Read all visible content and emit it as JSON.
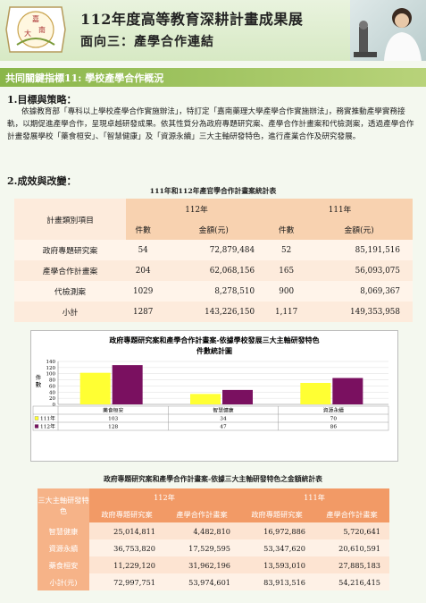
{
  "header": {
    "logo_chars": [
      "嘉",
      "南",
      "大"
    ],
    "title": "112年度高等教育深耕計畫成果展",
    "subtitle": "面向三：產學合作連結"
  },
  "section_bar": "共同關鍵指標11: 學校產學合作概況",
  "sec1": {
    "title": "1.目標與策略：",
    "text": "依據教育部「專科以上學校產學合作實施辦法」，特訂定「嘉南藥理大學產學合作實施辦法」，務實推動產學實務接軌，以期促進產學合作，呈現卓越研發成果。依其性質分為政府專題研究案、產學合作計畫案和代檢測案，透過產學合作計畫發展學校「藥食桓安」、「智慧健康」及「資源永續」三大主軸研發特色，進行產業合作及研究發展。"
  },
  "sec2": {
    "title": "2.成效與改變："
  },
  "table1": {
    "caption": "111年和112年產官學合作計畫案統計表",
    "corner": "計畫類別項目",
    "years": [
      "112年",
      "111年"
    ],
    "subheads": [
      "件數",
      "金額(元)",
      "件數",
      "金額(元)"
    ],
    "rows": [
      {
        "label": "政府專題研究案",
        "v": [
          "54",
          "72,879,484",
          "52",
          "85,191,516"
        ]
      },
      {
        "label": "產學合作計畫案",
        "v": [
          "204",
          "62,068,156",
          "165",
          "56,093,075"
        ]
      },
      {
        "label": "代檢測案",
        "v": [
          "1029",
          "8,278,510",
          "900",
          "8,069,367"
        ]
      },
      {
        "label": "小計",
        "v": [
          "1287",
          "143,226,150",
          "1,117",
          "149,353,958"
        ]
      }
    ]
  },
  "chart_data": {
    "type": "bar",
    "title": "政府專題研究案和產學合作計畫案-依據學校發展三大主軸研發特色",
    "subtitle": "件數統計圖",
    "ylabel": "件數",
    "categories": [
      "藥食桓安",
      "智慧健康",
      "資源永續"
    ],
    "series": [
      {
        "name": "111年",
        "values": [
          103,
          34,
          70
        ],
        "color": "#ffff33"
      },
      {
        "name": "112年",
        "values": [
          128,
          47,
          86
        ],
        "color": "#7a1060"
      }
    ],
    "ylim": [
      0,
      140
    ],
    "yticks": [
      "0",
      "20",
      "40",
      "60",
      "80",
      "100",
      "120",
      "140"
    ]
  },
  "table2": {
    "caption": "政府專題研究案和產學合作計畫案-依據三大主軸研發特色之金額統計表",
    "corner": "三大主軸研發特色",
    "years": [
      "112年",
      "111年"
    ],
    "subheads": [
      "政府專題研究案",
      "產學合作計畫案",
      "政府專題研究案",
      "產學合作計畫案"
    ],
    "rows": [
      {
        "label": "智慧健康",
        "v": [
          "25,014,811",
          "4,482,810",
          "16,972,886",
          "5,720,641"
        ]
      },
      {
        "label": "資源永續",
        "v": [
          "36,753,820",
          "17,529,595",
          "53,347,620",
          "20,610,591"
        ]
      },
      {
        "label": "藥食桓安",
        "v": [
          "11,229,120",
          "31,962,196",
          "13,593,010",
          "27,885,183"
        ]
      },
      {
        "label": "小計(元)",
        "v": [
          "72,997,751",
          "53,974,601",
          "83,913,516",
          "54,216,415"
        ]
      }
    ]
  }
}
